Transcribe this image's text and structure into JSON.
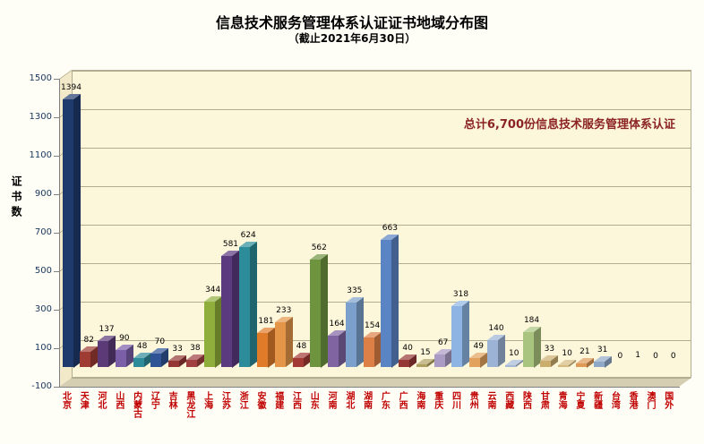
{
  "title": "信息技术服务管理体系认证证书地域分布图",
  "subtitle": "（截止2021年6月30日）",
  "annotation": "总计6,700份信息技术服务管理体系认证",
  "y_axis_title": "证书数",
  "colors": {
    "annotation": "#8B2323",
    "x_label": "#C00000",
    "y_tick_label": "#17365D",
    "gridline": "#B3AC8F",
    "wall": "#FCF6DA",
    "floor": "#D6CEB2"
  },
  "chart_data": {
    "type": "bar",
    "title": "信息技术服务管理体系认证证书地域分布图",
    "subtitle": "（截止2021年6月30日）",
    "ylabel": "证书数",
    "xlabel": "",
    "ylim": [
      -100,
      1500
    ],
    "yticks": [
      1500,
      1300,
      1100,
      900,
      700,
      500,
      300,
      100,
      -100
    ],
    "grid": true,
    "legend": "none",
    "annotation": "总计6,700份信息技术服务管理体系认证",
    "total": 6700,
    "categories": [
      "北京",
      "天津",
      "河北",
      "山西",
      "内蒙古",
      "辽宁",
      "吉林",
      "黑龙江",
      "上海",
      "江苏",
      "浙江",
      "安徽",
      "福建",
      "江西",
      "山东",
      "河南",
      "湖北",
      "湖南",
      "广东",
      "广西",
      "海南",
      "重庆",
      "四川",
      "贵州",
      "云南",
      "西藏",
      "陕西",
      "甘肃",
      "青海",
      "宁夏",
      "新疆",
      "台湾",
      "香港",
      "澳门",
      "国外"
    ],
    "values": [
      1394,
      82,
      137,
      90,
      48,
      70,
      33,
      38,
      344,
      581,
      624,
      181,
      233,
      48,
      562,
      164,
      335,
      154,
      663,
      40,
      15,
      67,
      318,
      49,
      140,
      10,
      184,
      33,
      10,
      21,
      31,
      0,
      1,
      0,
      0
    ],
    "colors": [
      "#1F3B6E",
      "#9E3B33",
      "#5C3A78",
      "#7A5EA8",
      "#2E8B9A",
      "#2F5496",
      "#943634",
      "#A04040",
      "#8FAE3B",
      "#5B3A80",
      "#2C8C99",
      "#E07B2A",
      "#E59548",
      "#A33A34",
      "#6F9440",
      "#8064A2",
      "#7BA0CC",
      "#DD8047",
      "#5B84C4",
      "#953735",
      "#B0A060",
      "#A99BC4",
      "#8EB4E3",
      "#E2A25E",
      "#9CB3D5",
      "#A6B8D4",
      "#A9C47F",
      "#CBAE6E",
      "#D5B97E",
      "#E09A57",
      "#8FA8C8",
      "#C8B080",
      "#8090B0",
      "#C8B080",
      "#C8B080"
    ]
  }
}
